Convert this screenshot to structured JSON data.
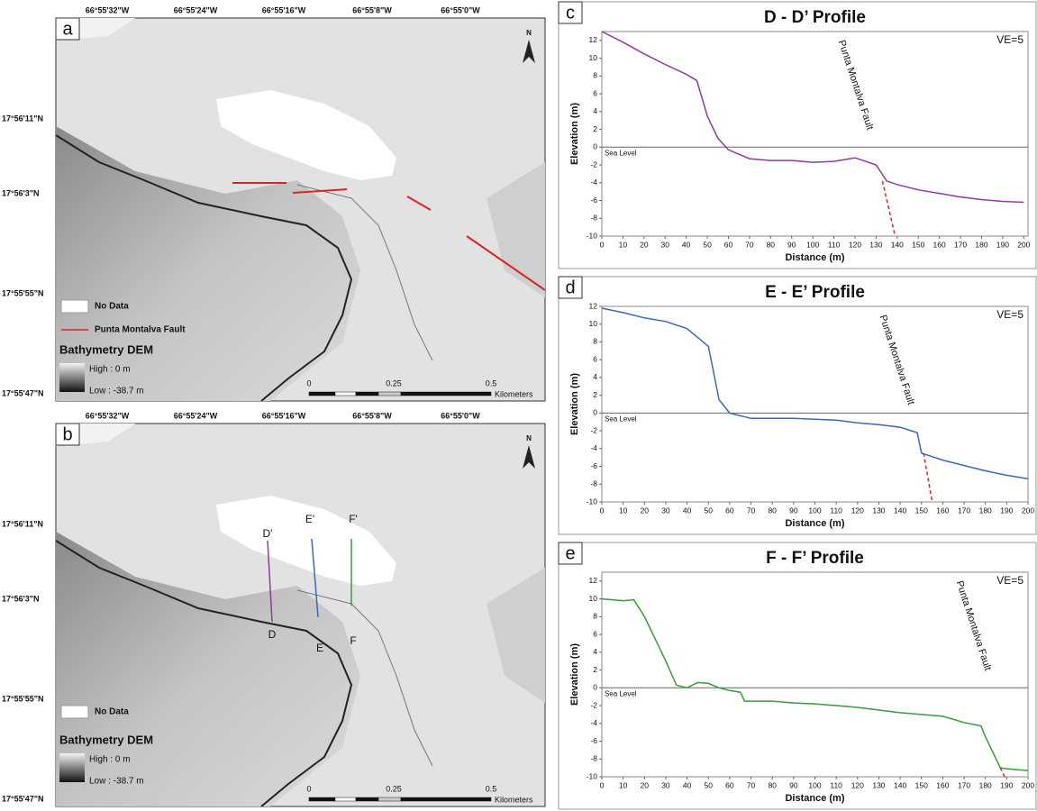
{
  "maps": [
    {
      "panel": "a",
      "lon_labels": [
        "66°55'32\"W",
        "66°55'24\"W",
        "66°55'16\"W",
        "66°55'8\"W",
        "66°55'0\"W"
      ],
      "lat_labels": [
        "17°56'11\"N",
        "17°56'3\"N",
        "17°55'55\"N",
        "17°55'47\"N"
      ],
      "legend": {
        "no_data": "No Data",
        "fault": "Punta Montalva Fault",
        "title": "Bathymetry DEM",
        "high": "High : 0 m",
        "low": "Low : -38.7 m"
      },
      "scale": [
        "0",
        "0.25",
        "0.5",
        "Kilometers"
      ],
      "north": "N"
    },
    {
      "panel": "b",
      "lon_labels": [
        "66°55'32\"W",
        "66°55'24\"W",
        "66°55'16\"W",
        "66°55'8\"W",
        "66°55'0\"W"
      ],
      "lat_labels": [
        "17°56'11\"N",
        "17°56'3\"N",
        "17°55'55\"N",
        "17°55'47\"N"
      ],
      "legend": {
        "no_data": "No Data",
        "title": "Bathymetry DEM",
        "high": "High : 0 m",
        "low": "Low : -38.7 m"
      },
      "scale": [
        "0",
        "0.25",
        "0.5",
        "Kilometers"
      ],
      "north": "N",
      "profile_labels": [
        "D'",
        "D",
        "E'",
        "E",
        "F'",
        "F"
      ]
    }
  ],
  "chart_data": [
    {
      "type": "line",
      "panel": "c",
      "title": "D - D’ Profile",
      "x_label": "Distance (m)",
      "y_label": "Elevation (m)",
      "ve_label": "VE=5",
      "sea_level_label": "Sea Level",
      "fault_label": "Punta Montalva Fault",
      "color": "#8e3a9e",
      "x": [
        0,
        10,
        20,
        30,
        40,
        45,
        50,
        55,
        60,
        70,
        80,
        90,
        100,
        110,
        120,
        130,
        135,
        140,
        150,
        160,
        170,
        180,
        190,
        200
      ],
      "values": [
        13,
        11.8,
        10.5,
        9.3,
        8.2,
        7.5,
        3.5,
        1,
        -0.3,
        -1.3,
        -1.5,
        -1.5,
        -1.7,
        -1.6,
        -1.2,
        -2,
        -3.8,
        -4.2,
        -4.8,
        -5.2,
        -5.6,
        -5.9,
        -6.1,
        -6.2
      ],
      "fault_line": {
        "color": "#d62728",
        "x": [
          133,
          139
        ],
        "values": [
          -3.8,
          -10
        ]
      },
      "xlim": [
        0,
        202
      ],
      "xticks": [
        0,
        10,
        20,
        30,
        40,
        50,
        60,
        70,
        80,
        90,
        100,
        110,
        120,
        130,
        140,
        150,
        160,
        170,
        180,
        190,
        200
      ],
      "ylim": [
        -10,
        13
      ],
      "yticks": [
        -10,
        -8,
        -6,
        -4,
        -2,
        0,
        2,
        4,
        6,
        8,
        10,
        12
      ]
    },
    {
      "type": "line",
      "panel": "d",
      "title": "E - E’ Profile",
      "x_label": "Distance (m)",
      "y_label": "Elevation (m)",
      "ve_label": "VE=5",
      "sea_level_label": "Sea Level",
      "fault_label": "Punta Montalva Fault",
      "color": "#3a6ab5",
      "x": [
        0,
        10,
        20,
        30,
        40,
        50,
        55,
        60,
        70,
        80,
        90,
        100,
        110,
        120,
        130,
        140,
        148,
        150,
        160,
        170,
        180,
        190,
        200
      ],
      "values": [
        11.8,
        11.3,
        10.7,
        10.3,
        9.5,
        7.5,
        1.5,
        0,
        -0.6,
        -0.6,
        -0.6,
        -0.7,
        -0.8,
        -1.1,
        -1.3,
        -1.6,
        -2.2,
        -4.5,
        -5.3,
        -5.9,
        -6.5,
        -7,
        -7.4
      ],
      "fault_line": {
        "color": "#d62728",
        "x": [
          151,
          155
        ],
        "values": [
          -4.5,
          -10
        ]
      },
      "xlim": [
        0,
        200
      ],
      "xticks": [
        0,
        10,
        20,
        30,
        40,
        50,
        60,
        70,
        80,
        90,
        100,
        110,
        120,
        130,
        140,
        150,
        160,
        170,
        180,
        190,
        200
      ],
      "ylim": [
        -10,
        12
      ],
      "yticks": [
        -10,
        -8,
        -6,
        -4,
        -2,
        0,
        2,
        4,
        6,
        8,
        10,
        12
      ]
    },
    {
      "type": "line",
      "panel": "e",
      "title": "F - F’ Profile",
      "x_label": "Distance (m)",
      "y_label": "Elevation (m)",
      "ve_label": "VE=5",
      "sea_level_label": "Sea Level",
      "fault_label": "Punta Montalva Fault",
      "color": "#3c9a3c",
      "x": [
        0,
        10,
        15,
        20,
        30,
        35,
        40,
        45,
        50,
        55,
        60,
        65,
        67,
        70,
        80,
        90,
        100,
        110,
        120,
        130,
        140,
        150,
        160,
        170,
        178,
        180,
        187,
        190,
        200
      ],
      "values": [
        10,
        9.8,
        9.9,
        8,
        3,
        0.3,
        0,
        0.6,
        0.5,
        0,
        -0.3,
        -0.5,
        -1.5,
        -1.5,
        -1.5,
        -1.7,
        -1.8,
        -2,
        -2.2,
        -2.5,
        -2.8,
        -3,
        -3.2,
        -3.9,
        -4.3,
        -5.5,
        -9,
        -9.1,
        -9.3
      ],
      "fault_line": {
        "color": "#d62728",
        "x": [
          187,
          189
        ],
        "values": [
          -9,
          -10
        ]
      },
      "xlim": [
        0,
        200
      ],
      "xticks": [
        0,
        10,
        20,
        30,
        40,
        50,
        60,
        70,
        80,
        90,
        100,
        110,
        120,
        130,
        140,
        150,
        160,
        170,
        180,
        190,
        200
      ],
      "ylim": [
        -10,
        13
      ],
      "yticks": [
        -10,
        -8,
        -6,
        -4,
        -2,
        0,
        2,
        4,
        6,
        8,
        10,
        12
      ]
    }
  ]
}
